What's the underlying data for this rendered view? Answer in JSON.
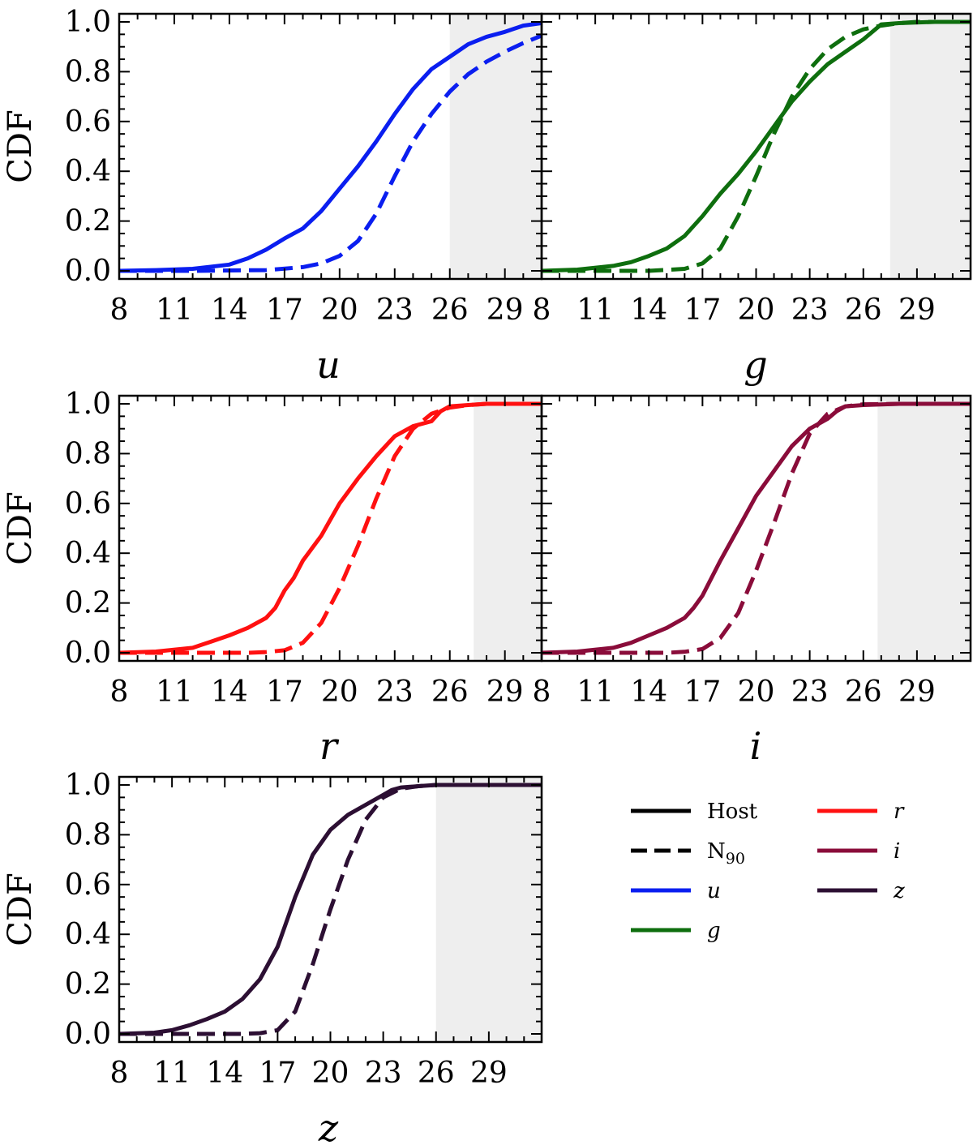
{
  "chart_data": [
    {
      "type": "line",
      "panel": "u",
      "xlabel": "u",
      "ylabel": "CDF",
      "xlim": [
        8,
        31
      ],
      "ylim": [
        0,
        1
      ],
      "xticks": [
        "8",
        "11",
        "14",
        "17",
        "20",
        "23",
        "26",
        "29"
      ],
      "yticks": [
        "0.0",
        "0.2",
        "0.4",
        "0.6",
        "0.8",
        "1.0"
      ],
      "shaded_region": [
        26,
        31
      ],
      "color": "#0a1ef0",
      "series": [
        {
          "style": "solid",
          "x": [
            8,
            10,
            12,
            14,
            15,
            16,
            17,
            18,
            19,
            20,
            21,
            22,
            23,
            24,
            25,
            26,
            27,
            28,
            29,
            30,
            31
          ],
          "y": [
            0,
            0.003,
            0.008,
            0.025,
            0.05,
            0.085,
            0.13,
            0.17,
            0.24,
            0.33,
            0.42,
            0.52,
            0.63,
            0.73,
            0.81,
            0.86,
            0.91,
            0.94,
            0.96,
            0.985,
            0.995
          ]
        },
        {
          "style": "dashed",
          "x": [
            8,
            12,
            16,
            18,
            19,
            20,
            21,
            22,
            23,
            24,
            25,
            26,
            27,
            28,
            29,
            30,
            31
          ],
          "y": [
            0,
            0,
            0.003,
            0.015,
            0.03,
            0.06,
            0.12,
            0.23,
            0.38,
            0.52,
            0.63,
            0.72,
            0.79,
            0.84,
            0.88,
            0.915,
            0.945
          ]
        }
      ]
    },
    {
      "type": "line",
      "panel": "g",
      "xlabel": "g",
      "ylabel": "",
      "xlim": [
        8,
        32
      ],
      "ylim": [
        0,
        1
      ],
      "xticks": [
        "8",
        "11",
        "14",
        "17",
        "20",
        "23",
        "26",
        "29"
      ],
      "yticks": [],
      "shaded_region": [
        27.5,
        32
      ],
      "color": "#0e6e0e",
      "series": [
        {
          "style": "solid",
          "x": [
            8,
            10,
            12,
            13,
            14,
            15,
            16,
            17,
            18,
            19,
            20,
            21,
            22,
            23,
            24,
            25,
            26,
            26.5,
            27,
            28,
            30,
            32
          ],
          "y": [
            0,
            0.005,
            0.02,
            0.035,
            0.06,
            0.09,
            0.14,
            0.22,
            0.31,
            0.39,
            0.48,
            0.58,
            0.68,
            0.76,
            0.83,
            0.88,
            0.93,
            0.96,
            0.99,
            0.995,
            1,
            1
          ]
        },
        {
          "style": "dashed",
          "x": [
            8,
            14,
            15,
            16,
            17,
            18,
            19,
            20,
            21,
            22,
            23,
            24,
            25,
            26,
            27,
            28,
            29,
            30,
            32
          ],
          "y": [
            0,
            0,
            0.004,
            0.008,
            0.03,
            0.09,
            0.22,
            0.38,
            0.55,
            0.7,
            0.81,
            0.89,
            0.94,
            0.97,
            0.985,
            0.995,
            1,
            1,
            1
          ]
        }
      ]
    },
    {
      "type": "line",
      "panel": "r",
      "xlabel": "r",
      "ylabel": "CDF",
      "xlim": [
        8,
        31
      ],
      "ylim": [
        0,
        1
      ],
      "xticks": [
        "8",
        "11",
        "14",
        "17",
        "20",
        "23",
        "26",
        "29"
      ],
      "yticks": [
        "0.0",
        "0.2",
        "0.4",
        "0.6",
        "0.8",
        "1.0"
      ],
      "shaded_region": [
        27.3,
        31
      ],
      "color": "#ff1010",
      "series": [
        {
          "style": "solid",
          "x": [
            8,
            10,
            12,
            13,
            14,
            15,
            16,
            16.5,
            17,
            17.5,
            18,
            19,
            20,
            21,
            22,
            23,
            24,
            25,
            25.5,
            26,
            27,
            28,
            31
          ],
          "y": [
            0,
            0.005,
            0.02,
            0.045,
            0.07,
            0.1,
            0.14,
            0.18,
            0.25,
            0.3,
            0.37,
            0.47,
            0.6,
            0.7,
            0.79,
            0.87,
            0.91,
            0.93,
            0.97,
            0.99,
            0.995,
            1,
            1
          ]
        },
        {
          "style": "dashed",
          "x": [
            8,
            15,
            16,
            17,
            18,
            19,
            20,
            21,
            22,
            23,
            24,
            25,
            26,
            27,
            28,
            29,
            31
          ],
          "y": [
            0,
            0,
            0.003,
            0.01,
            0.04,
            0.12,
            0.26,
            0.43,
            0.62,
            0.79,
            0.9,
            0.96,
            0.985,
            0.995,
            1,
            1,
            1
          ]
        }
      ]
    },
    {
      "type": "line",
      "panel": "i",
      "xlabel": "i",
      "ylabel": "",
      "xlim": [
        8,
        32
      ],
      "ylim": [
        0,
        1
      ],
      "xticks": [
        "8",
        "11",
        "14",
        "17",
        "20",
        "23",
        "26",
        "29"
      ],
      "yticks": [],
      "shaded_region": [
        26.8,
        32
      ],
      "color": "#8a0c3a",
      "series": [
        {
          "style": "solid",
          "x": [
            8,
            10,
            12,
            13,
            14,
            15,
            16,
            16.5,
            17,
            17.5,
            18,
            19,
            20,
            21,
            22,
            23,
            24,
            24.5,
            25,
            26,
            28,
            32
          ],
          "y": [
            0,
            0.005,
            0.02,
            0.04,
            0.07,
            0.1,
            0.14,
            0.18,
            0.23,
            0.3,
            0.37,
            0.5,
            0.63,
            0.73,
            0.83,
            0.9,
            0.94,
            0.97,
            0.99,
            0.995,
            1,
            1
          ]
        },
        {
          "style": "dashed",
          "x": [
            8,
            15,
            16,
            17,
            18,
            19,
            20,
            21,
            22,
            23,
            24,
            25,
            26,
            28,
            30,
            32
          ],
          "y": [
            0,
            0,
            0.004,
            0.015,
            0.06,
            0.16,
            0.33,
            0.52,
            0.72,
            0.88,
            0.96,
            0.99,
            0.998,
            1,
            1,
            1
          ]
        }
      ]
    },
    {
      "type": "line",
      "panel": "z",
      "xlabel": "z",
      "ylabel": "CDF",
      "xlim": [
        8,
        32
      ],
      "ylim": [
        0,
        1
      ],
      "xticks": [
        "8",
        "11",
        "14",
        "17",
        "20",
        "23",
        "26",
        "29"
      ],
      "yticks": [
        "0.0",
        "0.2",
        "0.4",
        "0.6",
        "0.8",
        "1.0"
      ],
      "shaded_region": [
        26,
        32
      ],
      "color": "#2c0f33",
      "series": [
        {
          "style": "solid",
          "x": [
            8,
            10,
            11,
            12,
            13,
            14,
            15,
            16,
            17,
            18,
            19,
            20,
            21,
            22,
            23,
            23.5,
            24,
            25,
            26,
            28,
            32
          ],
          "y": [
            0,
            0.005,
            0.015,
            0.035,
            0.06,
            0.09,
            0.14,
            0.22,
            0.35,
            0.55,
            0.72,
            0.82,
            0.88,
            0.92,
            0.96,
            0.98,
            0.99,
            0.995,
            1,
            1,
            1
          ]
        },
        {
          "style": "dashed",
          "x": [
            8,
            15,
            16,
            17,
            18,
            19,
            20,
            21,
            22,
            23,
            24,
            25,
            26,
            28,
            32
          ],
          "y": [
            0,
            0,
            0.003,
            0.015,
            0.09,
            0.28,
            0.5,
            0.7,
            0.86,
            0.95,
            0.985,
            0.995,
            1,
            1,
            1
          ]
        }
      ]
    }
  ],
  "legend": {
    "entries": [
      {
        "label": "Host",
        "style": "solid",
        "color": "#000000",
        "italic": false
      },
      {
        "label": "N",
        "subscript": "90",
        "style": "dashed",
        "color": "#000000",
        "italic": false
      },
      {
        "label": "u",
        "style": "solid",
        "color": "#0a1ef0",
        "italic": true
      },
      {
        "label": "g",
        "style": "solid",
        "color": "#0e6e0e",
        "italic": true
      },
      {
        "label": "r",
        "style": "solid",
        "color": "#ff1010",
        "italic": true
      },
      {
        "label": "i",
        "style": "solid",
        "color": "#8a0c3a",
        "italic": true
      },
      {
        "label": "z",
        "style": "solid",
        "color": "#2c0f33",
        "italic": true
      }
    ]
  }
}
